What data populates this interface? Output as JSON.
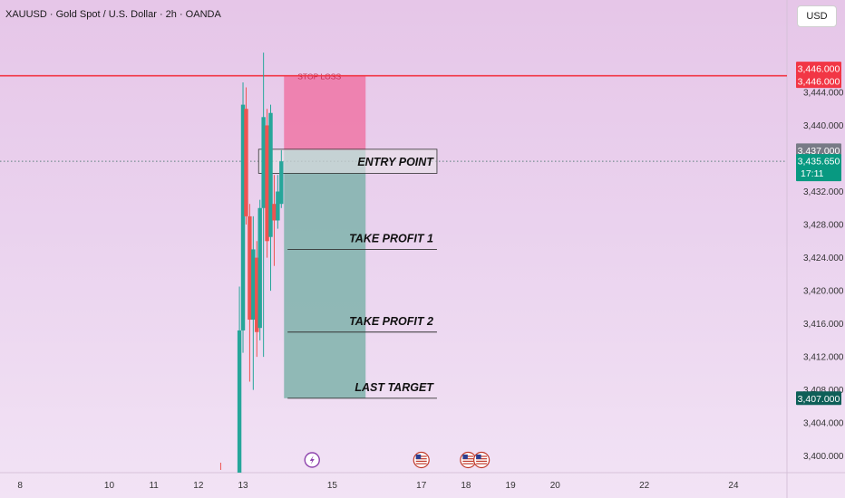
{
  "header": {
    "symbol_title": "XAUUSD · Gold Spot / U.S. Dollar · 2h · OANDA",
    "currency_button": "USD"
  },
  "colors": {
    "up": "#26a69a",
    "down": "#ef5350",
    "stop_zone": "#f06a9c",
    "profit_zone": "#7fb3ac",
    "stop_line": "#f23645",
    "price_badge": "#089981",
    "last_target_badge": "#0e5f58",
    "entry_badge": "#787b86"
  },
  "chart_data": {
    "type": "candlestick",
    "ylim": [
      3398,
      3451
    ],
    "y_ticks": [
      "3,400.000",
      "3,404.000",
      "3,408.000",
      "3,412.000",
      "3,416.000",
      "3,420.000",
      "3,424.000",
      "3,428.000",
      "3,432.000",
      "3,440.000",
      "3,444.000"
    ],
    "x_ticks": [
      {
        "label": "8",
        "x": 8.0
      },
      {
        "label": "10",
        "x": 10.0
      },
      {
        "label": "11",
        "x": 11.0
      },
      {
        "label": "12",
        "x": 12.0
      },
      {
        "label": "13",
        "x": 13.0
      },
      {
        "label": "15",
        "x": 15.0
      },
      {
        "label": "17",
        "x": 17.0
      },
      {
        "label": "18",
        "x": 18.0
      },
      {
        "label": "19",
        "x": 19.0
      },
      {
        "label": "20",
        "x": 20.0
      },
      {
        "label": "22",
        "x": 22.0
      },
      {
        "label": "24",
        "x": 24.0
      }
    ],
    "x_range": [
      7.55,
      25.2
    ],
    "candles": [
      {
        "t": 12.92,
        "o": 3398.0,
        "h": 3420.5,
        "l": 3398.0,
        "c": 3415.2
      },
      {
        "t": 13.0,
        "o": 3415.2,
        "h": 3445.2,
        "l": 3412.5,
        "c": 3442.5
      },
      {
        "t": 13.07,
        "o": 3442.0,
        "h": 3444.6,
        "l": 3428.0,
        "c": 3429.0
      },
      {
        "t": 13.15,
        "o": 3429.0,
        "h": 3430.5,
        "l": 3409.0,
        "c": 3416.5
      },
      {
        "t": 13.23,
        "o": 3416.5,
        "h": 3429.0,
        "l": 3408.0,
        "c": 3425.0
      },
      {
        "t": 13.31,
        "o": 3424.0,
        "h": 3426.0,
        "l": 3412.0,
        "c": 3415.0
      },
      {
        "t": 13.38,
        "o": 3415.5,
        "h": 3431.0,
        "l": 3414.0,
        "c": 3430.0
      },
      {
        "t": 13.46,
        "o": 3430.0,
        "h": 3448.8,
        "l": 3412.0,
        "c": 3441.0
      },
      {
        "t": 13.54,
        "o": 3440.0,
        "h": 3442.0,
        "l": 3424.0,
        "c": 3426.0
      },
      {
        "t": 13.62,
        "o": 3426.5,
        "h": 3442.5,
        "l": 3420.0,
        "c": 3441.5
      },
      {
        "t": 13.7,
        "o": 3430.5,
        "h": 3434.0,
        "l": 3423.0,
        "c": 3428.5
      },
      {
        "t": 13.78,
        "o": 3428.5,
        "h": 3434.0,
        "l": 3427.5,
        "c": 3432.0
      },
      {
        "t": 13.86,
        "o": 3430.5,
        "h": 3437.0,
        "l": 3430.0,
        "c": 3435.65
      }
    ],
    "trade": {
      "x_start": 13.92,
      "x_end": 15.75,
      "entry": 3437.0,
      "stop_loss": 3446.0,
      "take_profit_1": 3425.0,
      "take_profit_2": 3415.0,
      "last_target": 3407.0,
      "labels": {
        "stop": "STOP LOSS",
        "entry": "ENTRY POINT",
        "tp1": "TAKE PROFIT 1",
        "tp2": "TAKE PROFIT 2",
        "last": "LAST TARGET"
      }
    },
    "current_price": 3435.65,
    "current_price_label": "3,435.650",
    "countdown": "17:11",
    "price_badges": {
      "stop_a": "3,446.000",
      "stop_b": "3,446.000",
      "entry": "3,437.000",
      "last_target": "3,407.000"
    },
    "events": [
      {
        "t": 14.55,
        "icon": "lightning-icon"
      },
      {
        "t": 17.0,
        "icon": "us-flag-icon"
      },
      {
        "t": 18.05,
        "icon": "us-flag-icon"
      },
      {
        "t": 18.35,
        "icon": "us-flag-icon"
      }
    ]
  }
}
